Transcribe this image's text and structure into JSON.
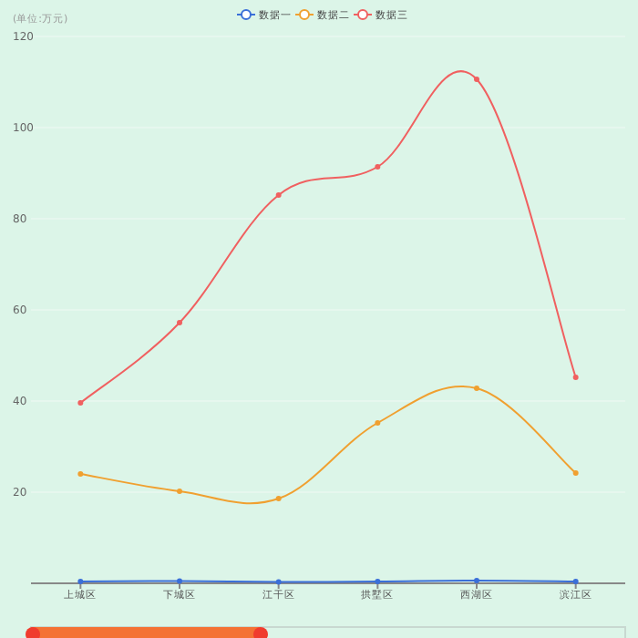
{
  "chart_data": {
    "type": "line",
    "ylabel": "(单位:万元)",
    "categories": [
      "上城区",
      "下城区",
      "江干区",
      "拱墅区",
      "西湖区",
      "滨江区"
    ],
    "series": [
      {
        "name": "数据一",
        "color": "#3a6fd8",
        "values": [
          0.4,
          0.5,
          0.3,
          0.4,
          0.6,
          0.4
        ]
      },
      {
        "name": "数据二",
        "color": "#f0a030",
        "values": [
          24,
          20.2,
          18.6,
          35.2,
          42.8,
          24.2
        ]
      },
      {
        "name": "数据三",
        "color": "#f06060",
        "values": [
          39.6,
          57.2,
          85.2,
          91.4,
          110.6,
          45.2
        ]
      }
    ],
    "ylim": [
      0,
      120
    ],
    "yticks": [
      {
        "value": 0,
        "label": null
      },
      20,
      40,
      60,
      80,
      100,
      120
    ],
    "grid": "y",
    "legend": "top",
    "marker": "circle",
    "line_style": "solid"
  }
}
